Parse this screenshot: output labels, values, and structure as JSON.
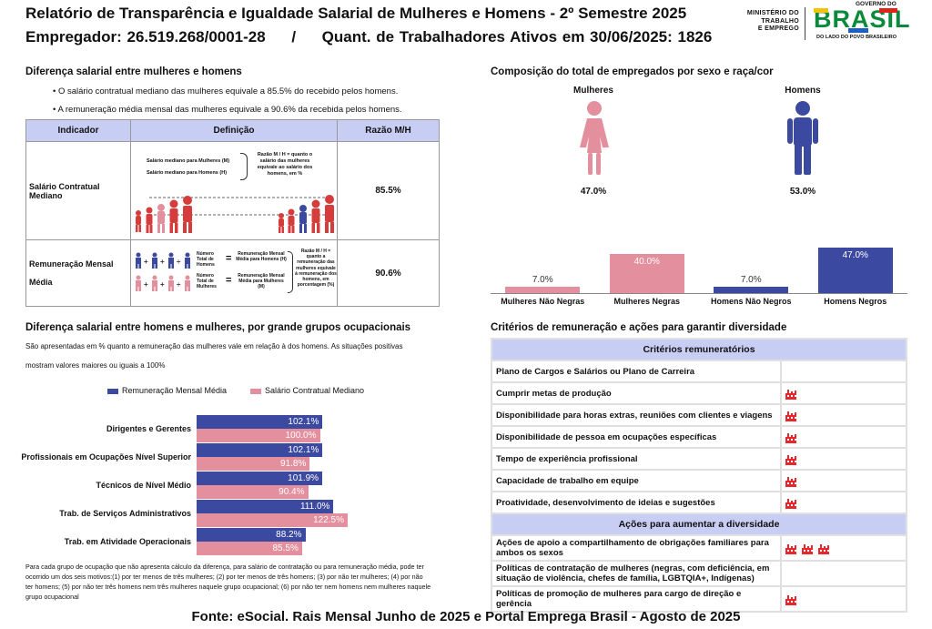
{
  "header": {
    "title": "Relatório de Transparência e Igualdade Salarial de Mulheres e Homens - 2º Semestre 2025",
    "employer": "Empregador: 26.519.268/0001-28     /     Quant. de Trabalhadores Ativos em 30/06/2025: 1826",
    "ministry_lines": [
      "MINISTÉRIO DO",
      "TRABALHO",
      "E EMPREGO"
    ],
    "gov_logo_top": "GOVERNO DO",
    "gov_logo_word": "BRASIL",
    "gov_logo_bottom": "DO LADO DO POVO BRASILEIRO"
  },
  "salary_diff": {
    "heading": "Diferença salarial entre mulheres e homens",
    "bullets": [
      "• O salário contratual mediano das mulheres equivale a 85.5% do recebido pelos homens.",
      "• A remuneração média mensal das mulheres equivale a 90.6% da recebida pelos homens."
    ],
    "table": {
      "headers": [
        "Indicador",
        "Definição",
        "Razão M/H"
      ],
      "rows": [
        {
          "indicator": "Salário Contratual Mediano",
          "ratio": "85.5%",
          "def_lines": [
            "Salário mediano para Mulheres (M)",
            "Salário mediano para Homens (H)"
          ],
          "def_note": "Razão M / H = quanto o salário das mulheres equivale ao salário dos homens, em %"
        },
        {
          "indicator_lines": [
            "Remuneração Mensal",
            "Média"
          ],
          "ratio": "90.6%",
          "def_men": "Número Total de Homens",
          "def_women": "Número Total de Mulheres",
          "def_rem_men": "Remuneração Mensal Média para Homens (H)",
          "def_rem_women": "Remuneração Mensal Média para Mulheres (M)",
          "def_note": "Razão M / H = quanto a remuneração das mulheres equivale à remuneração dos homens, em porcentagem (%)"
        }
      ]
    }
  },
  "composition": {
    "heading": "Composição do total de empregados por sexo e raça/cor",
    "women_label": "Mulheres",
    "men_label": "Homens",
    "women_pct": "47.0%",
    "men_pct": "53.0%",
    "colors": {
      "women": "#e48f9d",
      "men": "#3b4aa0"
    }
  },
  "chart_data": [
    {
      "type": "bar",
      "title": "Composição do total de empregados por sexo e raça/cor",
      "categories": [
        "Mulheres Não Negras",
        "Mulheres Negras",
        "Homens Não Negros",
        "Homens Negros"
      ],
      "values": [
        7.0,
        40.0,
        7.0,
        47.0
      ],
      "labels": [
        "7.0%",
        "40.0%",
        "7.0%",
        "47.0%"
      ],
      "colors": [
        "#e48f9d",
        "#e48f9d",
        "#3b4aa0",
        "#3b4aa0"
      ],
      "ylim": [
        0,
        47
      ]
    },
    {
      "type": "bar",
      "orientation": "horizontal",
      "title": "Diferença salarial entre homens e mulheres, por grande grupos ocupacionais",
      "categories": [
        "Dirigentes e Gerentes",
        "Profissionais em Ocupações Nível Superior",
        "Técnicos de Nível Médio",
        "Trab. de Serviços Administrativos",
        "Trab. em Atividade Operacionais"
      ],
      "series": [
        {
          "name": "Remuneração Mensal Média",
          "values": [
            102.1,
            102.1,
            101.9,
            111.0,
            88.2
          ],
          "labels": [
            "102.1%",
            "102.1%",
            "101.9%",
            "111.0%",
            "88.2%"
          ],
          "color": "#3b4aa0"
        },
        {
          "name": "Salário Contratual Mediano",
          "values": [
            100.0,
            91.8,
            90.4,
            122.5,
            85.5
          ],
          "labels": [
            "100.0%",
            "91.8%",
            "90.4%",
            "122.5%",
            "85.5%"
          ],
          "color": "#e48f9d"
        }
      ],
      "xlim": [
        0,
        122.5
      ]
    }
  ],
  "occupational": {
    "heading": "Diferença salarial entre homens e mulheres, por grande grupos ocupacionais",
    "desc_line1": "São apresentadas em % quanto a remuneração das mulheres vale em relação à dos homens. As situações positivas",
    "desc_line2": "mostram valores maiores ou iguais a 100%",
    "legend_blue": "Remuneração Mensal Média",
    "legend_pink": "Salário Contratual Mediano",
    "footnote": [
      "Para cada grupo de ocupação que não apresenta cálculo da diferença, para salário de contratação ou para remuneração média, pode ter",
      "ocorrido um dos seis motivos:(1) por ter menos de três mulheres; (2) por ter menos de três homens; (3) por não ter mulheres; (4) por não",
      "ter homens; (5) por não ter três homens nem três mulheres naquele grupo ocupacional; (6) por não ter nem homens nem mulheres naquele",
      "grupo ocupacional"
    ]
  },
  "criteria": {
    "heading": "Critérios de remuneração e ações para garantir diversidade",
    "criteria_header": "Critérios remuneratórios",
    "criteria_rows": [
      {
        "label": "Plano de Cargos e Salários ou Plano de Carreira",
        "icons": 0
      },
      {
        "label": "Cumprir metas de produção",
        "icons": 1
      },
      {
        "label": "Disponibilidade para horas extras, reuniões com clientes e viagens",
        "icons": 1
      },
      {
        "label": "Disponibilidade de pessoa em ocupações específicas",
        "icons": 1
      },
      {
        "label": "Tempo de experiência profissional",
        "icons": 1
      },
      {
        "label": "Capacidade de trabalho em equipe",
        "icons": 1
      },
      {
        "label": "Proatividade, desenvolvimento de ideias e sugestões",
        "icons": 1
      }
    ],
    "actions_header": "Ações para aumentar a diversidade",
    "action_rows": [
      {
        "label": "Ações de apoio a compartilhamento de obrigações familiares para ambos os sexos",
        "icons": 3
      },
      {
        "label": "Políticas de contratação de mulheres (negras, com deficiência, em situação de violência, chefes de família, LGBTQIA+, Indígenas)",
        "icons": 0
      },
      {
        "label": "Políticas de promoção de mulheres para cargo de direção e gerência",
        "icons": 1
      }
    ],
    "icon_color": "#e8262c"
  },
  "footer": "Fonte: eSocial. Rais Mensal Junho de 2025 e Portal Emprega Brasil - Agosto de 2025"
}
